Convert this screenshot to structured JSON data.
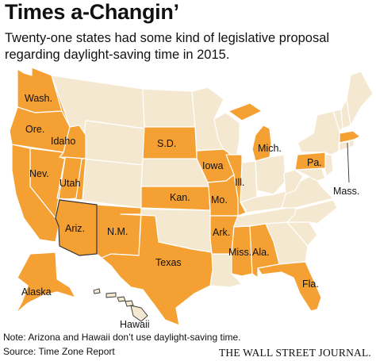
{
  "title": "Times a-Changin’",
  "subtitle": "Twenty-one states had some kind of legislative proposal regarding daylight-saving time in 2015.",
  "note": "Note: Arizona and Hawaii don’t use daylight-saving time.",
  "source": "Source: Time Zone Report",
  "brand": "THE WALL STREET JOURNAL.",
  "colors": {
    "highlight": "#f5a033",
    "default": "#f5e8d0",
    "border": "#ffffff",
    "arizona_border": "#333333"
  },
  "state_labels": {
    "wash": "Wash.",
    "ore": "Ore.",
    "idaho": "Idaho",
    "nev": "Nev.",
    "utah": "Utah",
    "ariz": "Ariz.",
    "nm": "N.M.",
    "texas": "Texas",
    "sd": "S.D.",
    "kan": "Kan.",
    "iowa": "Iowa",
    "mo": "Mo.",
    "ark": "Ark.",
    "ill": "Ill.",
    "miss": "Miss.",
    "ala": "Ala.",
    "fla": "Fla.",
    "mich": "Mich.",
    "pa": "Pa.",
    "mass": "Mass.",
    "alaska": "Alaska",
    "hawaii": "Hawaii"
  }
}
